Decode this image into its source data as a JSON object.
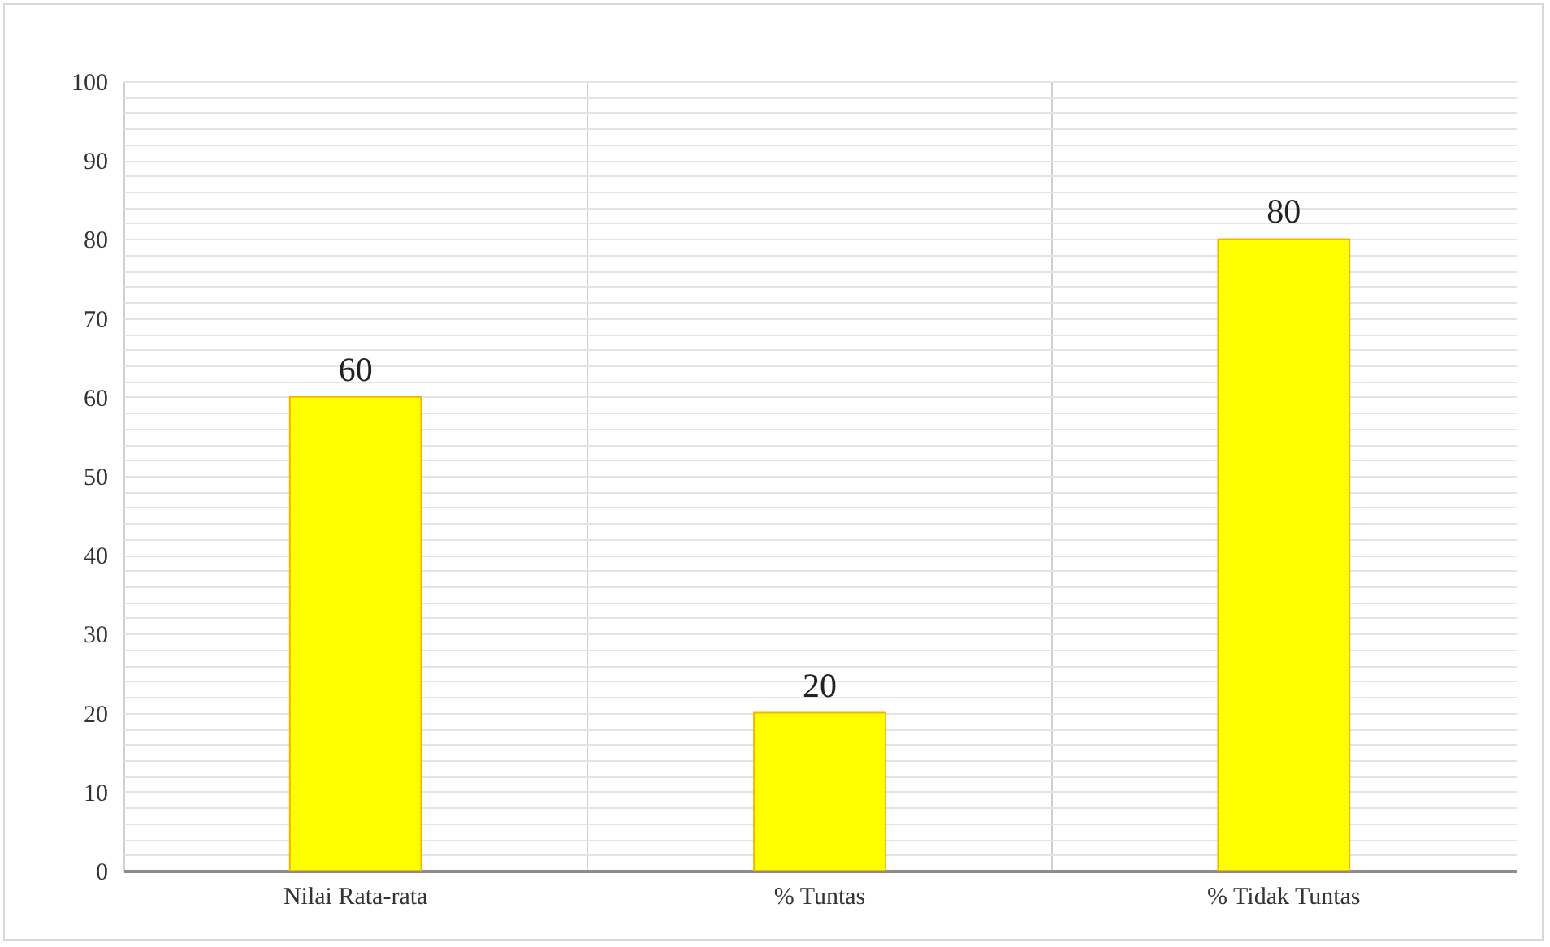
{
  "chart_data": {
    "type": "bar",
    "categories": [
      "Nilai Rata-rata",
      "% Tuntas",
      "% Tidak Tuntas"
    ],
    "values": [
      60,
      20,
      80
    ],
    "color": "#ffff00",
    "data_labels": true,
    "grid": true,
    "ylim": [
      0,
      100
    ],
    "yticks": [
      0,
      {
        "value": 2,
        "label": null
      },
      {
        "value": 4,
        "label": null
      },
      {
        "value": 6,
        "label": null
      },
      {
        "value": 8,
        "label": null
      },
      10,
      {
        "value": 12,
        "label": null
      },
      {
        "value": 14,
        "label": null
      },
      {
        "value": 16,
        "label": null
      },
      {
        "value": 18,
        "label": null
      },
      20,
      {
        "value": 22,
        "label": null
      },
      {
        "value": 24,
        "label": null
      },
      {
        "value": 26,
        "label": null
      },
      {
        "value": 28,
        "label": null
      },
      30,
      {
        "value": 32,
        "label": null
      },
      {
        "value": 34,
        "label": null
      },
      {
        "value": 36,
        "label": null
      },
      {
        "value": 38,
        "label": null
      },
      40,
      {
        "value": 42,
        "label": null
      },
      {
        "value": 44,
        "label": null
      },
      {
        "value": 46,
        "label": null
      },
      {
        "value": 48,
        "label": null
      },
      50,
      {
        "value": 52,
        "label": null
      },
      {
        "value": 54,
        "label": null
      },
      {
        "value": 56,
        "label": null
      },
      {
        "value": 58,
        "label": null
      },
      60,
      {
        "value": 62,
        "label": null
      },
      {
        "value": 64,
        "label": null
      },
      {
        "value": 66,
        "label": null
      },
      {
        "value": 68,
        "label": null
      },
      70,
      {
        "value": 72,
        "label": null
      },
      {
        "value": 74,
        "label": null
      },
      {
        "value": 76,
        "label": null
      },
      {
        "value": 78,
        "label": null
      },
      80,
      {
        "value": 82,
        "label": null
      },
      {
        "value": 84,
        "label": null
      },
      {
        "value": 86,
        "label": null
      },
      {
        "value": 88,
        "label": null
      },
      90,
      {
        "value": 92,
        "label": null
      },
      {
        "value": 94,
        "label": null
      },
      {
        "value": 96,
        "label": null
      },
      {
        "value": 98,
        "label": null
      },
      100
    ]
  }
}
